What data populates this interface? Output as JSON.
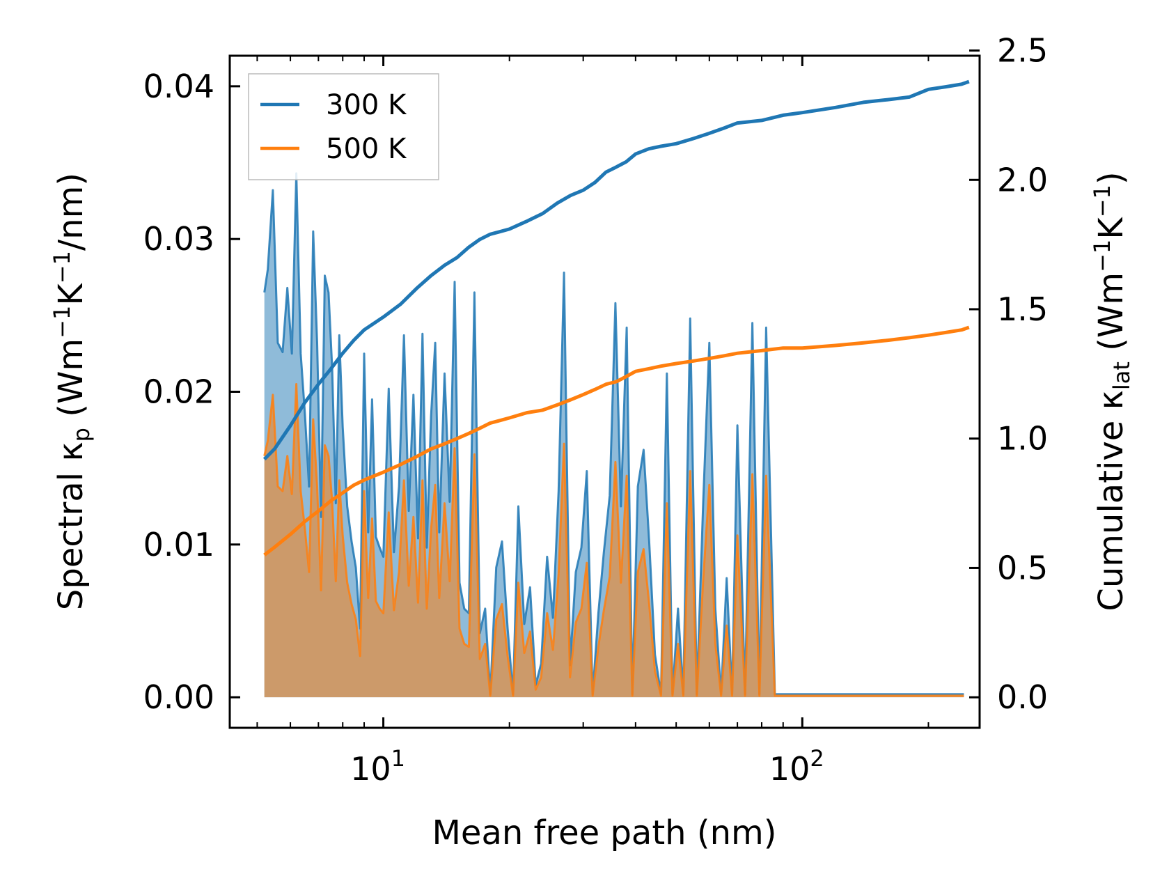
{
  "chart_data": {
    "type": "line",
    "title": "",
    "xlabel": "Mean free path (nm)",
    "ylabel_left": {
      "prefix": "Spectral κ",
      "sub": "p",
      "open": " (Wm",
      "sup1": "−1",
      "mid": "K",
      "sup2": "−1",
      "close": "/nm)"
    },
    "ylabel_right": {
      "prefix": "Cumulative κ",
      "sub": "lat",
      "open": " (Wm",
      "sup1": "−1",
      "mid": "K",
      "sup2": "−1",
      "close": ")"
    },
    "xscale": "log",
    "xlim": [
      4.3,
      265
    ],
    "ylim_left": [
      -0.002,
      0.042
    ],
    "ylim_right": [
      -0.118,
      2.48
    ],
    "x_ticks": [
      {
        "value": 10,
        "base": "10",
        "exp": "1"
      },
      {
        "value": 100,
        "base": "10",
        "exp": "2"
      }
    ],
    "y_ticks_left": [
      "0.00",
      "0.01",
      "0.02",
      "0.03",
      "0.04"
    ],
    "y_ticks_right": [
      "0.0",
      "0.5",
      "1.0",
      "1.5",
      "2.0",
      "2.5"
    ],
    "legend": {
      "position": "top-left",
      "entries": [
        {
          "label": "300 K",
          "color": "#1f77b4"
        },
        {
          "label": "500 K",
          "color": "#ff7f0e"
        }
      ]
    },
    "series": [
      {
        "name": "300 K",
        "color": "#1f77b4",
        "spectral_x": [
          5.2,
          5.3,
          5.45,
          5.6,
          5.75,
          5.9,
          6.05,
          6.2,
          6.35,
          6.5,
          6.65,
          6.8,
          6.95,
          7.1,
          7.25,
          7.4,
          7.55,
          7.7,
          7.85,
          8.0,
          8.2,
          8.4,
          8.6,
          8.8,
          9.0,
          9.2,
          9.4,
          9.6,
          9.8,
          10.0,
          10.3,
          10.6,
          10.9,
          11.2,
          11.5,
          11.8,
          12.1,
          12.4,
          12.7,
          13.0,
          13.3,
          13.6,
          14.0,
          14.4,
          14.8,
          15.2,
          15.6,
          16.0,
          16.5,
          17.0,
          17.5,
          18.0,
          18.6,
          19.2,
          19.8,
          20.4,
          21.0,
          21.7,
          22.4,
          23.1,
          23.8,
          24.6,
          25.4,
          26.2,
          27.0,
          27.9,
          28.8,
          29.7,
          30.6,
          31.6,
          32.6,
          33.6,
          34.7,
          35.8,
          36.9,
          38.1,
          39.3,
          40.5,
          41.8,
          43.1,
          44.5,
          46.0,
          47.5,
          49.0,
          50.5,
          52.0,
          54.0,
          56.0,
          58.0,
          60.0,
          62.0,
          64.0,
          66.0,
          68.0,
          70.0,
          73.0,
          76.0,
          79.0,
          82.0,
          86.0,
          90.0,
          95.0,
          100.0,
          105.0,
          110.0,
          115.0,
          118.0,
          120.0,
          123.0,
          130.0,
          138.0,
          140.0,
          143.0,
          150.0,
          170.0,
          185.0,
          190.0,
          194.0,
          200.0,
          206.0,
          210.0,
          230.0,
          236.0,
          240.0,
          243.0
        ],
        "spectral_y": [
          0.0265,
          0.028,
          0.0332,
          0.0232,
          0.0226,
          0.0268,
          0.0225,
          0.0343,
          0.0225,
          0.0185,
          0.0138,
          0.0305,
          0.0232,
          0.0118,
          0.0276,
          0.0265,
          0.0215,
          0.0127,
          0.0237,
          0.0177,
          0.0125,
          0.0102,
          0.0085,
          0.0045,
          0.0225,
          0.0108,
          0.0195,
          0.0105,
          0.0098,
          0.0092,
          0.0202,
          0.0095,
          0.0138,
          0.0237,
          0.0122,
          0.0198,
          0.0104,
          0.0238,
          0.0098,
          0.0184,
          0.0232,
          0.0108,
          0.0212,
          0.0128,
          0.0272,
          0.0075,
          0.0058,
          0.0055,
          0.0265,
          0.0042,
          0.0058,
          0.0002,
          0.0085,
          0.0102,
          0.0045,
          0.0002,
          0.0125,
          0.0048,
          0.0072,
          0.0008,
          0.0022,
          0.0092,
          0.0052,
          0.0135,
          0.0278,
          0.0021,
          0.0082,
          0.0098,
          0.0148,
          0.0002,
          0.0055,
          0.0095,
          0.0132,
          0.0258,
          0.0125,
          0.0242,
          0.0002,
          0.0138,
          0.0162,
          0.0102,
          0.0028,
          0.0002,
          0.0212,
          0.0002,
          0.0058,
          0.0002,
          0.0248,
          0.0002,
          0.0128,
          0.0232,
          0.0058,
          0.0002,
          0.0078,
          0.0002,
          0.0178,
          0.0002,
          0.0245,
          0.0002,
          0.0242,
          0.0002,
          0.0002,
          0.0002,
          0.0002,
          0.0002,
          0.0002,
          0.0002,
          0.0002,
          0.0002,
          0.0002,
          0.0002,
          0.0002,
          0.0002,
          0.0002,
          0.0002,
          0.0002,
          0.0002,
          0.0002,
          0.0002,
          0.0002,
          0.0002,
          0.0002,
          0.0002,
          0.0002,
          0.0002,
          0.0002
        ],
        "cumulative_x": [
          5.2,
          5.5,
          6.0,
          6.5,
          7.0,
          7.5,
          8.0,
          8.5,
          9.0,
          10.0,
          11.0,
          12.0,
          13.0,
          14.0,
          15.0,
          16.0,
          17.0,
          18.0,
          19.0,
          20.0,
          22.0,
          24.0,
          26.0,
          28.0,
          30.0,
          32.0,
          34.0,
          36.0,
          38.0,
          40.0,
          43.0,
          46.0,
          50.0,
          55.0,
          60.0,
          65.0,
          70.0,
          80.0,
          90.0,
          100.0,
          120.0,
          140.0,
          160.0,
          180.0,
          200.0,
          220.0,
          240.0,
          250.0
        ],
        "cumulative_y": [
          0.92,
          0.96,
          1.05,
          1.14,
          1.21,
          1.27,
          1.33,
          1.38,
          1.42,
          1.47,
          1.52,
          1.58,
          1.63,
          1.67,
          1.7,
          1.74,
          1.77,
          1.79,
          1.8,
          1.81,
          1.84,
          1.87,
          1.91,
          1.94,
          1.96,
          1.99,
          2.03,
          2.05,
          2.07,
          2.1,
          2.12,
          2.13,
          2.14,
          2.16,
          2.18,
          2.2,
          2.22,
          2.23,
          2.25,
          2.26,
          2.28,
          2.3,
          2.31,
          2.32,
          2.35,
          2.36,
          2.37,
          2.38
        ]
      },
      {
        "name": "500 K",
        "color": "#ff7f0e",
        "spectral_x": [
          5.2,
          5.3,
          5.45,
          5.6,
          5.75,
          5.9,
          6.05,
          6.2,
          6.35,
          6.5,
          6.65,
          6.8,
          6.95,
          7.1,
          7.25,
          7.4,
          7.55,
          7.7,
          7.85,
          8.0,
          8.2,
          8.4,
          8.6,
          8.8,
          9.0,
          9.2,
          9.4,
          9.6,
          9.8,
          10.0,
          10.3,
          10.6,
          10.9,
          11.2,
          11.5,
          11.8,
          12.1,
          12.4,
          12.7,
          13.0,
          13.3,
          13.6,
          14.0,
          14.4,
          14.8,
          15.2,
          15.6,
          16.0,
          16.5,
          17.0,
          17.5,
          18.0,
          18.6,
          19.2,
          19.8,
          20.4,
          21.0,
          21.7,
          22.4,
          23.1,
          23.8,
          24.6,
          25.4,
          26.2,
          27.0,
          27.9,
          28.8,
          29.7,
          30.6,
          31.6,
          32.6,
          33.6,
          34.7,
          35.8,
          36.9,
          38.1,
          39.3,
          40.5,
          41.8,
          43.1,
          44.5,
          46.0,
          47.5,
          49.0,
          50.5,
          52.0,
          54.0,
          56.0,
          58.0,
          60.0,
          62.0,
          64.0,
          66.0,
          68.0,
          70.0,
          73.0,
          76.0,
          79.0,
          82.0,
          86.0,
          90.0,
          95.0,
          100.0,
          105.0,
          110.0,
          115.0,
          118.0,
          120.0,
          123.0,
          130.0,
          138.0,
          140.0,
          143.0,
          150.0,
          170.0,
          185.0,
          190.0,
          194.0,
          200.0,
          206.0,
          210.0,
          230.0,
          236.0,
          240.0,
          243.0
        ],
        "spectral_y": [
          0.0158,
          0.0168,
          0.0198,
          0.0138,
          0.0135,
          0.0158,
          0.0133,
          0.0205,
          0.0135,
          0.011,
          0.0082,
          0.0182,
          0.0138,
          0.007,
          0.0165,
          0.0158,
          0.0128,
          0.0076,
          0.0142,
          0.0106,
          0.0075,
          0.0061,
          0.0051,
          0.0027,
          0.0135,
          0.0065,
          0.0117,
          0.0063,
          0.0058,
          0.0055,
          0.0121,
          0.0057,
          0.0082,
          0.0142,
          0.0073,
          0.0118,
          0.0062,
          0.0142,
          0.0058,
          0.011,
          0.0139,
          0.0065,
          0.0127,
          0.0076,
          0.0163,
          0.0045,
          0.0035,
          0.0033,
          0.0159,
          0.0025,
          0.0035,
          0.0001,
          0.0051,
          0.0061,
          0.0027,
          0.0001,
          0.0075,
          0.0029,
          0.0043,
          0.0005,
          0.0013,
          0.0055,
          0.0031,
          0.0081,
          0.0166,
          0.0013,
          0.0049,
          0.0058,
          0.0088,
          0.0001,
          0.0033,
          0.0057,
          0.0079,
          0.0154,
          0.0075,
          0.0145,
          0.0001,
          0.0082,
          0.0097,
          0.0061,
          0.0017,
          0.0001,
          0.0127,
          0.0001,
          0.0035,
          0.0001,
          0.0148,
          0.0001,
          0.0077,
          0.0139,
          0.0035,
          0.0001,
          0.0047,
          0.0001,
          0.0106,
          0.0001,
          0.0146,
          0.0001,
          0.0145,
          0.0001,
          0.0001,
          0.0001,
          0.0001,
          0.0001,
          0.0001,
          0.0001,
          0.0001,
          0.0001,
          0.0001,
          0.0001,
          0.0001,
          0.0001,
          0.0001,
          0.0001,
          0.0001,
          0.0001,
          0.0001,
          0.0001,
          0.0001,
          0.0001,
          0.0001,
          0.0001,
          0.0001,
          0.0001,
          0.0001
        ],
        "cumulative_x": [
          5.2,
          5.5,
          6.0,
          6.5,
          7.0,
          7.5,
          8.0,
          8.5,
          9.0,
          10.0,
          11.0,
          12.0,
          13.0,
          14.0,
          15.0,
          16.0,
          17.0,
          18.0,
          19.0,
          20.0,
          22.0,
          24.0,
          26.0,
          28.0,
          30.0,
          32.0,
          34.0,
          36.0,
          38.0,
          40.0,
          43.0,
          46.0,
          50.0,
          55.0,
          60.0,
          65.0,
          70.0,
          80.0,
          90.0,
          100.0,
          120.0,
          140.0,
          160.0,
          180.0,
          200.0,
          220.0,
          240.0,
          250.0
        ],
        "cumulative_y": [
          0.55,
          0.58,
          0.63,
          0.68,
          0.72,
          0.76,
          0.79,
          0.82,
          0.84,
          0.87,
          0.9,
          0.93,
          0.96,
          0.98,
          1.0,
          1.02,
          1.04,
          1.06,
          1.07,
          1.08,
          1.1,
          1.11,
          1.13,
          1.15,
          1.17,
          1.19,
          1.21,
          1.22,
          1.24,
          1.26,
          1.27,
          1.28,
          1.29,
          1.3,
          1.31,
          1.32,
          1.33,
          1.34,
          1.35,
          1.35,
          1.36,
          1.37,
          1.38,
          1.39,
          1.4,
          1.41,
          1.42,
          1.43
        ]
      }
    ]
  }
}
